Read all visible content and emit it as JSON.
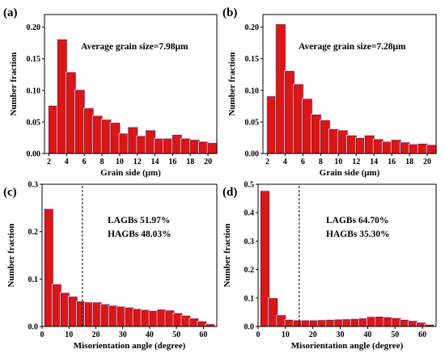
{
  "colors": {
    "bar_fill": "#d91717",
    "bar_stroke": "#6b0a0a",
    "bar_halo": "#f3c7f3",
    "axis": "#000000"
  },
  "chart_data": [
    {
      "type": "bar",
      "panel_label": "(a)",
      "xlabel": "Grain side (μm)",
      "ylabel": "Number fraction",
      "xlim": [
        1.5,
        21.0
      ],
      "ylim": [
        0,
        0.22
      ],
      "xticks": [
        2,
        4,
        6,
        8,
        10,
        12,
        14,
        16,
        18,
        20
      ],
      "yticks": [
        "0.00",
        "0.05",
        "0.10",
        "0.15",
        "0.20"
      ],
      "bin_width": 1,
      "x": [
        2.5,
        3.5,
        4.5,
        5.5,
        6.5,
        7.5,
        8.5,
        9.5,
        10.5,
        11.5,
        12.5,
        13.5,
        14.5,
        15.5,
        16.5,
        17.5,
        18.5,
        19.5,
        20.5
      ],
      "values": [
        0.075,
        0.18,
        0.128,
        0.1,
        0.071,
        0.059,
        0.053,
        0.048,
        0.031,
        0.041,
        0.027,
        0.036,
        0.023,
        0.023,
        0.029,
        0.023,
        0.021,
        0.018,
        0.016
      ],
      "annotations": [
        "Average grain size=7.98μm"
      ]
    },
    {
      "type": "bar",
      "panel_label": "(b)",
      "xlabel": "Grain side (μm)",
      "ylabel": "Number fraction",
      "xlim": [
        1.5,
        21.0
      ],
      "ylim": [
        0,
        0.22
      ],
      "xticks": [
        2,
        4,
        6,
        8,
        10,
        12,
        14,
        16,
        18,
        20
      ],
      "yticks": [
        "0.00",
        "0.05",
        "0.10",
        "0.15",
        "0.20"
      ],
      "bin_width": 1,
      "x": [
        2.5,
        3.5,
        4.5,
        5.5,
        6.5,
        7.5,
        8.5,
        9.5,
        10.5,
        11.5,
        12.5,
        13.5,
        14.5,
        15.5,
        16.5,
        17.5,
        18.5,
        19.5,
        20.5
      ],
      "values": [
        0.09,
        0.204,
        0.13,
        0.109,
        0.086,
        0.061,
        0.052,
        0.038,
        0.036,
        0.028,
        0.024,
        0.028,
        0.022,
        0.018,
        0.021,
        0.017,
        0.014,
        0.015,
        0.013
      ],
      "annotations": [
        "Average grain size=7.28μm"
      ]
    },
    {
      "type": "bar",
      "panel_label": "(c)",
      "xlabel": "Misorientation angle (degree)",
      "ylabel": "Number fraction",
      "xlim": [
        0,
        65
      ],
      "ylim": [
        0,
        0.3
      ],
      "xticks": [
        0,
        10,
        20,
        30,
        40,
        50,
        60
      ],
      "yticks": [
        "0.0",
        "0.1",
        "0.2",
        "0.3"
      ],
      "bin_width": 3,
      "x": [
        2.5,
        5.5,
        8.5,
        11.5,
        14.5,
        17.5,
        20.5,
        23.5,
        26.5,
        29.5,
        32.5,
        35.5,
        38.5,
        41.5,
        44.5,
        47.5,
        50.5,
        53.5,
        56.5,
        59.5,
        62.5
      ],
      "values": [
        0.247,
        0.088,
        0.07,
        0.062,
        0.052,
        0.05,
        0.05,
        0.046,
        0.043,
        0.041,
        0.039,
        0.036,
        0.034,
        0.032,
        0.035,
        0.033,
        0.027,
        0.022,
        0.016,
        0.01,
        0.004
      ],
      "reference_line_x": 15,
      "annotations": [
        "LAGBs  51.97%",
        "HAGBs  48.03%"
      ]
    },
    {
      "type": "bar",
      "panel_label": "(d)",
      "xlabel": "Misorientation angle (degree)",
      "ylabel": "Number fraction",
      "xlim": [
        0,
        65
      ],
      "ylim": [
        0,
        0.5
      ],
      "xticks": [
        0,
        10,
        20,
        30,
        40,
        50,
        60
      ],
      "yticks": [
        "0.0",
        "0.1",
        "0.2",
        "0.3",
        "0.4",
        "0.5"
      ],
      "bin_width": 3,
      "x": [
        2.5,
        5.5,
        8.5,
        11.5,
        14.5,
        17.5,
        20.5,
        23.5,
        26.5,
        29.5,
        32.5,
        35.5,
        38.5,
        41.5,
        44.5,
        47.5,
        50.5,
        53.5,
        56.5,
        59.5,
        62.5
      ],
      "values": [
        0.475,
        0.098,
        0.038,
        0.022,
        0.02,
        0.02,
        0.02,
        0.021,
        0.022,
        0.023,
        0.024,
        0.025,
        0.027,
        0.032,
        0.033,
        0.031,
        0.028,
        0.022,
        0.018,
        0.012,
        0.005
      ],
      "reference_line_x": 15,
      "annotations": [
        "LAGBs  64.70%",
        "HAGBs  35.30%"
      ]
    }
  ]
}
